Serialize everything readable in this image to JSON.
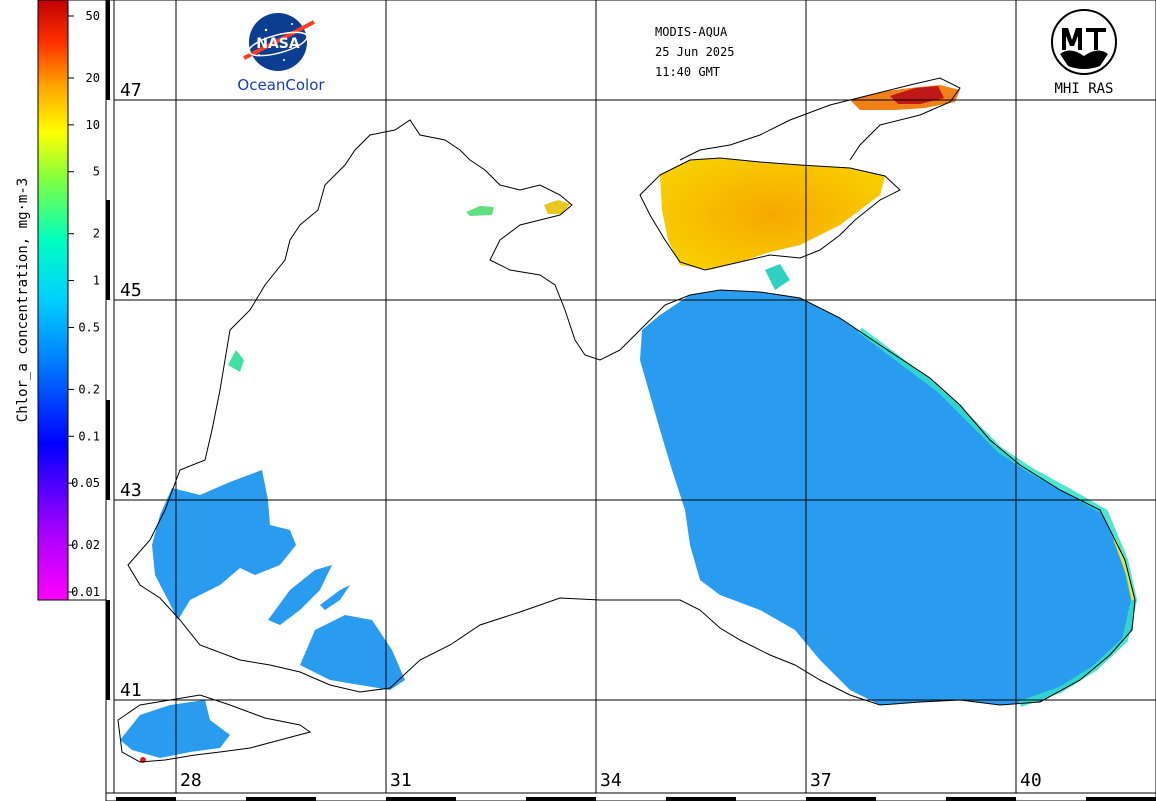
{
  "header": {
    "satellite": "MODIS-AQUA",
    "date": "25 Jun 2025",
    "time": "11:40 GMT"
  },
  "logos": {
    "nasa_wordmark": "NASA",
    "oceancolor": "OceanColor",
    "mhi": "MHI RAS"
  },
  "colorbar": {
    "title": "Chlor_a concentration, mg·m-3",
    "ticks": [
      "50",
      "20",
      "10",
      "5",
      "2",
      "1",
      "0.5",
      "0.2",
      "0.1",
      "0.05",
      "0.02",
      "0.01"
    ],
    "scale": "log",
    "range": [
      0.01,
      50
    ],
    "colors": [
      "#ff00ff",
      "#8000ff",
      "#0000ff",
      "#0080ff",
      "#00c0ff",
      "#00ffd0",
      "#40ff40",
      "#ffff00",
      "#ffa000",
      "#ff4000",
      "#c00000"
    ]
  },
  "latitude_labels": [
    "47",
    "45",
    "43",
    "41"
  ],
  "longitude_labels": [
    "28",
    "31",
    "34",
    "37",
    "40"
  ],
  "colors": {
    "background": "#ffffff",
    "grid": "#000000",
    "coast": "#000000",
    "open_sea": "#2a9cf0",
    "coastal_band": "#30e0d0",
    "azov_high": "#f5b800",
    "azov_peak": "#c01818"
  }
}
